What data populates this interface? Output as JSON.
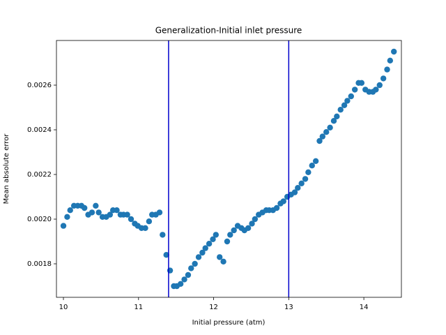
{
  "chart_data": {
    "type": "scatter",
    "title": "Generalization-Initial inlet pressure",
    "xlabel": "Initial pressure (atm)",
    "ylabel": "Mean absolute error",
    "xlim": [
      9.907,
      14.5
    ],
    "ylim": [
      0.00165,
      0.0028
    ],
    "xticks": [
      10,
      11,
      12,
      13,
      14
    ],
    "yticks": [
      0.0018,
      {
        "value": 0.002,
        "label": "0.0020"
      },
      0.0022,
      0.0024,
      0.0026
    ],
    "vlines": [
      11.4,
      13.0
    ],
    "vline_color": "#0000cc",
    "series": [
      {
        "color": "#1f77b4",
        "x": [
          10.0,
          10.05,
          10.09,
          10.14,
          10.19,
          10.24,
          10.28,
          10.33,
          10.38,
          10.43,
          10.47,
          10.52,
          10.57,
          10.62,
          10.66,
          10.71,
          10.76,
          10.8,
          10.85,
          10.9,
          10.95,
          10.99,
          11.04,
          11.09,
          11.14,
          11.18,
          11.23,
          11.28,
          11.32,
          11.37,
          11.42,
          11.47,
          11.51,
          11.56,
          11.61,
          11.66,
          11.7,
          11.75,
          11.8,
          11.85,
          11.89,
          11.94,
          11.99,
          12.03,
          12.08,
          12.13,
          12.18,
          12.22,
          12.27,
          12.32,
          12.37,
          12.41,
          12.46,
          12.51,
          12.55,
          12.6,
          12.65,
          12.7,
          12.74,
          12.79,
          12.84,
          12.89,
          12.93,
          12.98,
          13.03,
          13.08,
          13.12,
          13.17,
          13.22,
          13.26,
          13.31,
          13.36,
          13.41,
          13.45,
          13.5,
          13.55,
          13.6,
          13.64,
          13.69,
          13.74,
          13.78,
          13.83,
          13.88,
          13.93,
          13.97,
          14.02,
          14.07,
          14.12,
          14.16,
          14.21,
          14.26,
          14.31,
          14.35,
          14.4
        ],
        "values": [
          0.00197,
          0.00201,
          0.00204,
          0.00206,
          0.00206,
          0.00206,
          0.00205,
          0.00202,
          0.00203,
          0.00206,
          0.00203,
          0.00201,
          0.00201,
          0.00202,
          0.00204,
          0.00204,
          0.00202,
          0.00202,
          0.00202,
          0.002,
          0.00198,
          0.00197,
          0.00196,
          0.00196,
          0.00199,
          0.00202,
          0.00202,
          0.00203,
          0.00193,
          0.00184,
          0.00177,
          0.0017,
          0.0017,
          0.00171,
          0.00173,
          0.00175,
          0.00178,
          0.0018,
          0.00183,
          0.00185,
          0.00187,
          0.00189,
          0.00191,
          0.00193,
          0.00183,
          0.00181,
          0.0019,
          0.00193,
          0.00195,
          0.00197,
          0.00196,
          0.00195,
          0.00196,
          0.00198,
          0.002,
          0.00202,
          0.00203,
          0.00204,
          0.00204,
          0.00204,
          0.00205,
          0.00207,
          0.00208,
          0.0021,
          0.00211,
          0.00212,
          0.00214,
          0.00216,
          0.00218,
          0.00221,
          0.00224,
          0.00226,
          0.00235,
          0.00237,
          0.00239,
          0.00241,
          0.00244,
          0.00246,
          0.00249,
          0.00251,
          0.00253,
          0.00255,
          0.00258,
          0.00261,
          0.00261,
          0.00258,
          0.00257,
          0.00257,
          0.00258,
          0.0026,
          0.00263,
          0.00267,
          0.00271,
          0.00275
        ]
      }
    ]
  }
}
